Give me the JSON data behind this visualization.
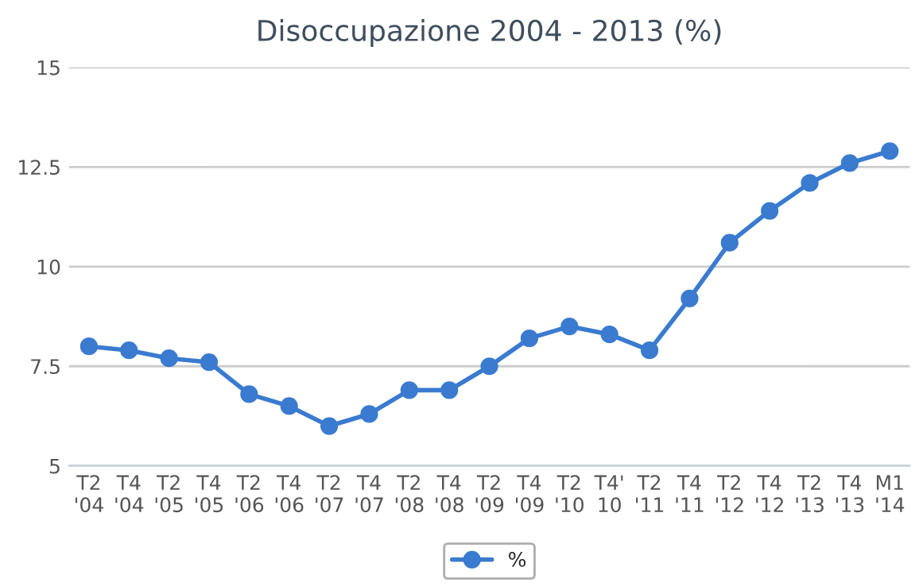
{
  "chart_data": {
    "type": "line",
    "title": "Disoccupazione 2004 - 2013 (%)",
    "categories": [
      "T2\n'04",
      "T4\n'04",
      "T2\n'05",
      "T4\n'05",
      "T2\n'06",
      "T4\n'06",
      "T2\n'07",
      "T4\n'07",
      "T2\n'08",
      "T4\n'08",
      "T2\n'09",
      "T4\n'09",
      "T2\n'10",
      "T4'\n10",
      "T2\n'11",
      "T4\n'11",
      "T2\n'12",
      "T4\n'12",
      "T2\n'13",
      "T4\n'13",
      "M1\n'14"
    ],
    "series": [
      {
        "name": "%",
        "color": "#3a7bd0",
        "values": [
          8.0,
          7.9,
          7.7,
          7.6,
          6.8,
          6.5,
          6.0,
          6.3,
          6.9,
          6.9,
          7.5,
          8.2,
          8.5,
          8.3,
          7.9,
          9.2,
          10.6,
          11.4,
          12.1,
          12.6,
          12.9
        ]
      }
    ],
    "ylim": [
      5,
      15
    ],
    "yticks": [
      5,
      7.5,
      10,
      12.5,
      15
    ],
    "grid": "y",
    "legend": "bottom",
    "marker": "circle",
    "line_style": "solid"
  }
}
